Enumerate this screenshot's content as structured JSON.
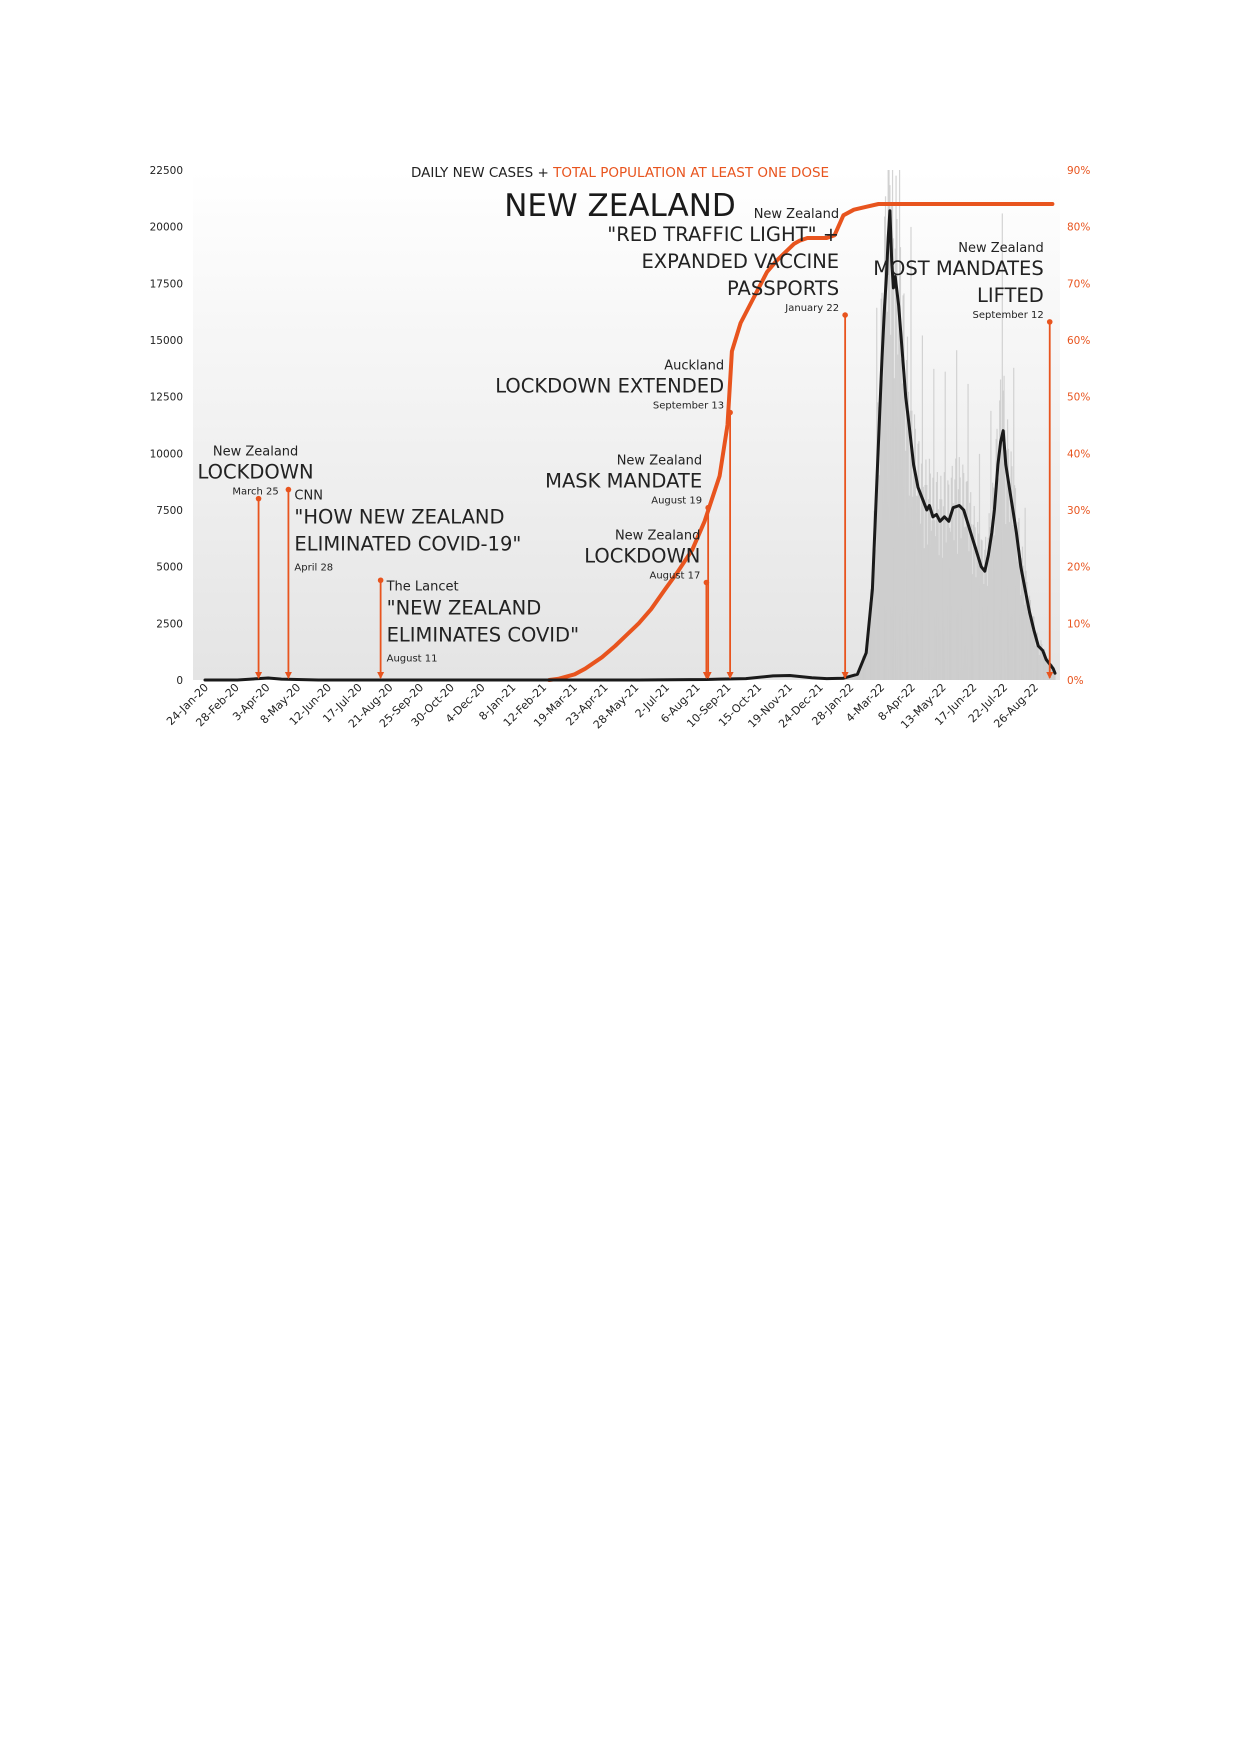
{
  "chart_data": {
    "type": "line",
    "title": "NEW ZEALAND",
    "subtitle_part1": "DAILY NEW CASES + ",
    "subtitle_part2": "TOTAL POPULATION AT LEAST ONE DOSE",
    "colors": {
      "cases": "#1a1a1a",
      "vaccination": "#e8541e",
      "bars": "#c9c9c9"
    },
    "grid": false,
    "y_left": {
      "ticks": [
        0,
        2500,
        5000,
        7500,
        10000,
        12500,
        15000,
        17500,
        20000,
        22500
      ],
      "range": [
        0,
        22500
      ]
    },
    "y_right": {
      "tick_labels": [
        "0%",
        "10%",
        "20%",
        "30%",
        "40%",
        "50%",
        "60%",
        "70%",
        "80%",
        "90%"
      ],
      "range": [
        0,
        90
      ]
    },
    "x_tick_labels": [
      "24-Jan-20",
      "28-Feb-20",
      "3-Apr-20",
      "8-May-20",
      "12-Jun-20",
      "17-Jul-20",
      "21-Aug-20",
      "25-Sep-20",
      "30-Oct-20",
      "4-Dec-20",
      "8-Jan-21",
      "12-Feb-21",
      "19-Mar-21",
      "23-Apr-21",
      "28-May-21",
      "2-Jul-21",
      "6-Aug-21",
      "10-Sep-21",
      "15-Oct-21",
      "19-Nov-21",
      "24-Dec-21",
      "28-Jan-22",
      "4-Mar-22",
      "8-Apr-22",
      "13-May-22",
      "17-Jun-22",
      "22-Jul-22",
      "26-Aug-22"
    ],
    "series": [
      {
        "name": "DAILY NEW CASES",
        "axis": "left",
        "x": [
          "24-Jan-20",
          "1-Mar-20",
          "25-Mar-20",
          "5-Apr-20",
          "20-Apr-20",
          "1-Jun-20",
          "1-Aug-20",
          "1-Jun-21",
          "17-Aug-21",
          "1-Sep-21",
          "1-Oct-21",
          "1-Nov-21",
          "20-Nov-21",
          "15-Dec-21",
          "1-Jan-22",
          "20-Jan-22",
          "5-Feb-22",
          "15-Feb-22",
          "22-Feb-22",
          "1-Mar-22",
          "5-Mar-22",
          "8-Mar-22",
          "10-Mar-22",
          "12-Mar-22",
          "14-Mar-22",
          "16-Mar-22",
          "18-Mar-22",
          "20-Mar-22",
          "24-Mar-22",
          "28-Mar-22",
          "1-Apr-22",
          "5-Apr-22",
          "10-Apr-22",
          "15-Apr-22",
          "20-Apr-22",
          "25-Apr-22",
          "28-Apr-22",
          "2-May-22",
          "6-May-22",
          "10-May-22",
          "15-May-22",
          "20-May-22",
          "25-May-22",
          "1-Jun-22",
          "6-Jun-22",
          "10-Jun-22",
          "14-Jun-22",
          "18-Jun-22",
          "22-Jun-22",
          "26-Jun-22",
          "30-Jun-22",
          "4-Jul-22",
          "8-Jul-22",
          "11-Jul-22",
          "13-Jul-22",
          "15-Jul-22",
          "18-Jul-22",
          "21-Jul-22",
          "24-Jul-22",
          "28-Jul-22",
          "1-Aug-22",
          "5-Aug-22",
          "10-Aug-22",
          "15-Aug-22",
          "20-Aug-22",
          "25-Aug-22",
          "30-Aug-22",
          "4-Sep-22",
          "8-Sep-22",
          "12-Sep-22",
          "16-Sep-22",
          "18-Sep-22"
        ],
        "values": [
          0,
          0,
          60,
          90,
          40,
          0,
          0,
          0,
          20,
          40,
          60,
          180,
          200,
          100,
          60,
          80,
          250,
          1200,
          4000,
          10500,
          14200,
          16500,
          17800,
          19500,
          20700,
          18500,
          17300,
          17800,
          16500,
          14500,
          12500,
          11200,
          9500,
          8500,
          8000,
          7500,
          7700,
          7200,
          7300,
          7000,
          7200,
          7000,
          7600,
          7700,
          7500,
          7000,
          6500,
          6000,
          5500,
          5000,
          4800,
          5500,
          6500,
          7500,
          8500,
          9500,
          10500,
          11000,
          9500,
          8500,
          7500,
          6500,
          5000,
          4000,
          3000,
          2200,
          1500,
          1300,
          900,
          700,
          500,
          300
        ]
      },
      {
        "name": "TOTAL POPULATION AT LEAST ONE DOSE",
        "axis": "right",
        "x": [
          "19-Feb-21",
          "1-Mar-21",
          "20-Mar-21",
          "1-Apr-21",
          "20-Apr-21",
          "5-May-21",
          "1-Jun-21",
          "15-Jun-21",
          "1-Jul-21",
          "15-Jul-21",
          "1-Aug-21",
          "15-Aug-21",
          "1-Sep-21",
          "10-Sep-21",
          "15-Sep-21",
          "25-Sep-21",
          "5-Oct-21",
          "15-Oct-21",
          "25-Oct-21",
          "5-Nov-21",
          "15-Nov-21",
          "25-Nov-21",
          "1-Dec-21",
          "10-Dec-21",
          "20-Dec-21",
          "1-Jan-22",
          "10-Jan-22",
          "20-Jan-22",
          "1-Feb-22",
          "15-Feb-22",
          "1-Mar-22",
          "8-Mar-22",
          "15-Sep-22"
        ],
        "values": [
          0,
          0.2,
          1,
          2,
          4,
          6,
          10,
          12.5,
          16,
          19,
          23,
          28,
          36,
          45,
          58,
          63,
          66,
          69,
          72,
          74,
          75.5,
          77,
          77.5,
          78,
          78,
          78,
          78.5,
          82,
          83,
          83.5,
          84,
          84,
          84
        ]
      }
    ],
    "annotations": [
      {
        "date": "25-Mar-20",
        "source": "New Zealand",
        "headline": [
          "LOCKDOWN"
        ],
        "date_label": "March 25",
        "align": "middle",
        "marker_value": 8000
      },
      {
        "date": "28-Apr-20",
        "source": "CNN",
        "headline": [
          "\"HOW NEW ZEALAND",
          "ELIMINATED COVID-19\""
        ],
        "date_label": "April 28",
        "align": "start",
        "marker_value": 8400
      },
      {
        "date": "11-Aug-20",
        "source": "The Lancet",
        "headline": [
          "\"NEW ZEALAND",
          "ELIMINATES COVID\""
        ],
        "date_label": "August 11",
        "align": "start",
        "marker_value": 4400
      },
      {
        "date": "17-Aug-21",
        "source": "New Zealand",
        "headline": [
          "LOCKDOWN"
        ],
        "date_label": "August 17",
        "align": "end",
        "marker_value": 4300
      },
      {
        "date": "19-Aug-21",
        "source": "New Zealand",
        "headline": [
          "MASK MANDATE"
        ],
        "date_label": "August 19",
        "align": "end",
        "marker_value": 7600
      },
      {
        "date": "13-Sep-21",
        "source": "Auckland",
        "headline": [
          "LOCKDOWN EXTENDED"
        ],
        "date_label": "September 13",
        "align": "end",
        "marker_value": 11800
      },
      {
        "date": "22-Jan-22",
        "source": "New Zealand",
        "headline": [
          "\"RED TRAFFIC LIGHT\" +",
          "EXPANDED VACCINE",
          "PASSPORTS"
        ],
        "date_label": "January 22",
        "align": "end",
        "marker_value": 16100
      },
      {
        "date": "12-Sep-22",
        "source": "New Zealand",
        "headline": [
          "MOST MANDATES",
          "LIFTED"
        ],
        "date_label": "September 12",
        "align": "end",
        "marker_value": 15800
      }
    ]
  }
}
